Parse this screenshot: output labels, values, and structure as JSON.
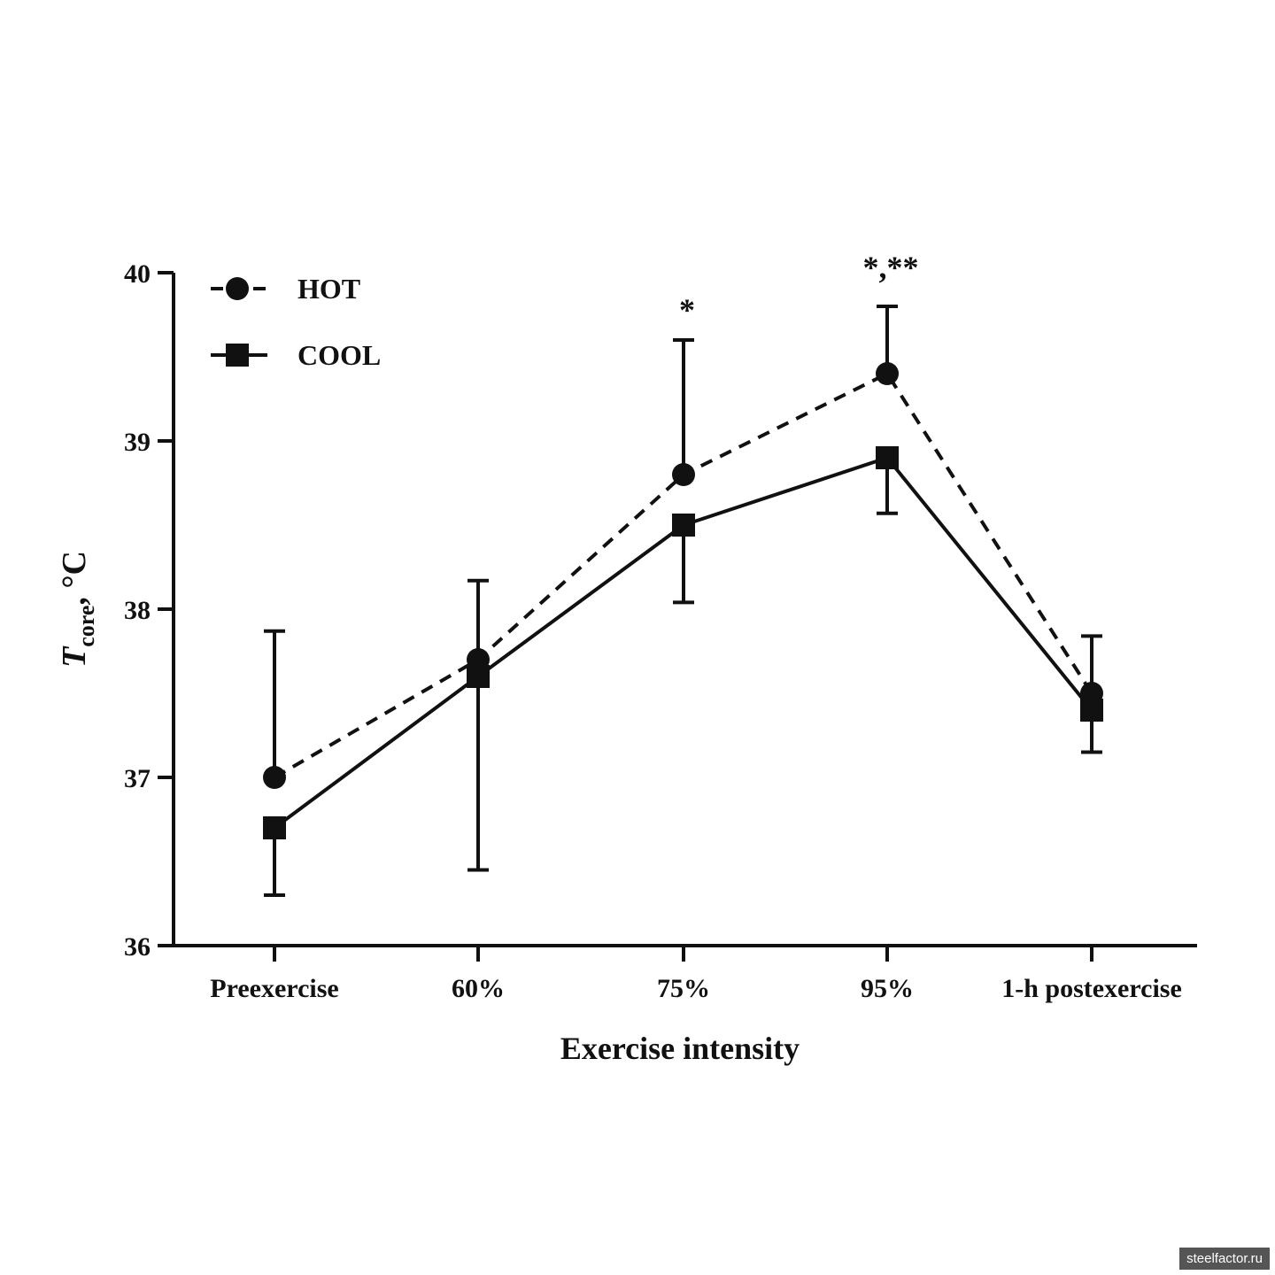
{
  "chart_data": {
    "type": "line",
    "xlabel": "Exercise intensity",
    "ylabel_main": "T",
    "ylabel_sub": "core",
    "ylabel_unit": ", °C",
    "ylim": [
      36,
      40
    ],
    "yticks": [
      36,
      37,
      38,
      39,
      40
    ],
    "grid": false,
    "legend_position": "top-left",
    "categories": [
      "Preexercise",
      "60%",
      "75%",
      "95%",
      "1-h postexercise"
    ],
    "series": [
      {
        "name": "HOT",
        "marker": "circle",
        "line_style": "dashed",
        "color": "#111111",
        "values": [
          37.0,
          37.7,
          38.8,
          39.4,
          37.5
        ],
        "error_upper": [
          37.87,
          38.17,
          39.6,
          39.8,
          37.84
        ]
      },
      {
        "name": "COOL",
        "marker": "square",
        "line_style": "solid",
        "color": "#111111",
        "values": [
          36.7,
          37.6,
          38.5,
          38.9,
          37.4
        ],
        "error_lower": [
          36.3,
          36.45,
          38.04,
          38.57,
          37.15
        ]
      }
    ],
    "annotations": [
      {
        "category": "75%",
        "text": "*"
      },
      {
        "category": "95%",
        "text": "*,**"
      }
    ]
  },
  "watermark": "steelfactor.ru"
}
